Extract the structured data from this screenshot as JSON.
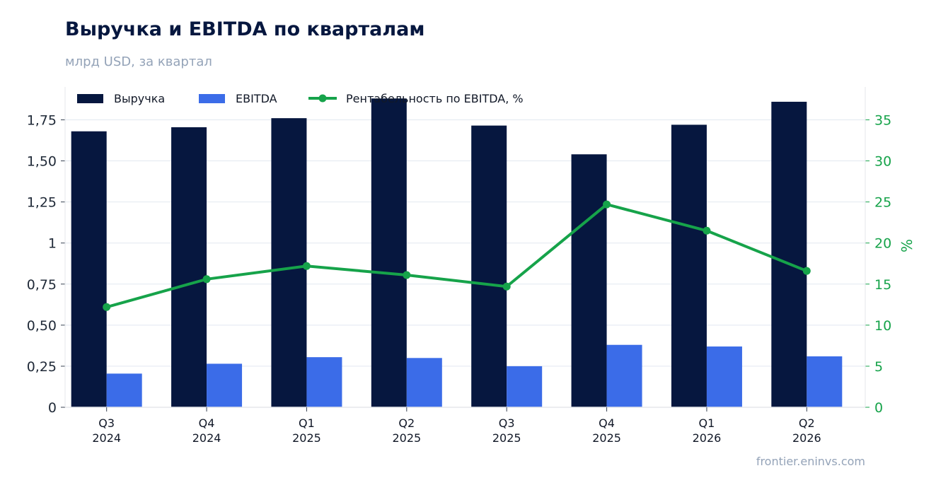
{
  "header": {
    "title": "Выручка и EBITDA по кварталам",
    "subtitle": "млрд USD, за квартал"
  },
  "footer": {
    "source": "frontier.eninvs.com"
  },
  "colors": {
    "revenue": "#06173f",
    "ebitda": "#3b6ce8",
    "margin": "#16a34a",
    "grid": "#e2e8f0"
  },
  "chart_data": {
    "type": "bar",
    "categories": [
      [
        "Q3",
        "2024"
      ],
      [
        "Q4",
        "2024"
      ],
      [
        "Q1",
        "2025"
      ],
      [
        "Q2",
        "2025"
      ],
      [
        "Q3",
        "2025"
      ],
      [
        "Q4",
        "2025"
      ],
      [
        "Q1",
        "2026"
      ],
      [
        "Q2",
        "2026"
      ]
    ],
    "series": [
      {
        "name": "Выручка",
        "type": "bar",
        "axis": "left",
        "values": [
          1.68,
          1.705,
          1.76,
          1.88,
          1.715,
          1.54,
          1.72,
          1.86
        ]
      },
      {
        "name": "EBITDA",
        "type": "bar",
        "axis": "left",
        "values": [
          0.205,
          0.265,
          0.305,
          0.3,
          0.25,
          0.38,
          0.37,
          0.31
        ]
      },
      {
        "name": "Рентабельность по EBITDA, %",
        "type": "line",
        "axis": "right",
        "values": [
          12.2,
          15.6,
          17.2,
          16.1,
          14.7,
          24.7,
          21.5,
          16.6
        ]
      }
    ],
    "y_left": {
      "ylim": [
        0,
        1.95
      ],
      "ticks": [
        0,
        0.25,
        0.5,
        0.75,
        1,
        1.25,
        1.5,
        1.75
      ],
      "tick_labels": [
        "0",
        "0,25",
        "0,50",
        "0,75",
        "1",
        "1,25",
        "1,50",
        "1,75"
      ]
    },
    "y_right": {
      "label": "%",
      "ylim": [
        0,
        39
      ],
      "ticks": [
        0,
        5,
        10,
        15,
        20,
        25,
        30,
        35
      ],
      "tick_labels": [
        "0",
        "5",
        "10",
        "15",
        "20",
        "25",
        "30",
        "35"
      ]
    },
    "grid": true,
    "legend": "top-left"
  }
}
